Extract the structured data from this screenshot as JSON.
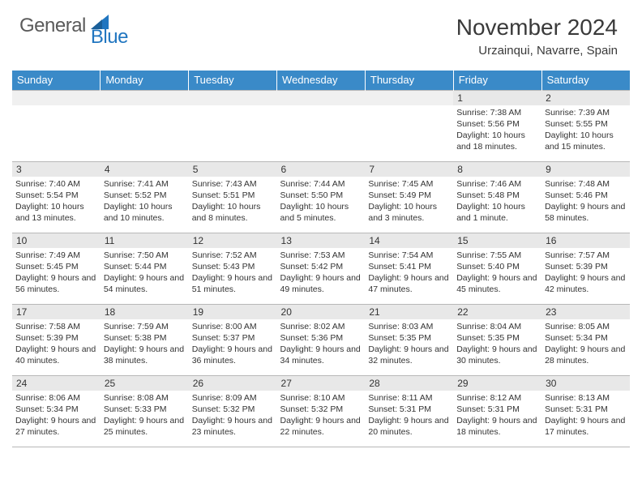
{
  "brand": {
    "text1": "General",
    "text2": "Blue"
  },
  "title": "November 2024",
  "location": "Urzainqui, Navarre, Spain",
  "colors": {
    "header_bg": "#3a8ac8",
    "header_text": "#ffffff",
    "daynum_bg": "#e8e8e8",
    "border": "#b8b8b8",
    "text": "#333333",
    "brand_blue": "#2176c0",
    "brand_gray": "#5a5a5a"
  },
  "weekdays": [
    "Sunday",
    "Monday",
    "Tuesday",
    "Wednesday",
    "Thursday",
    "Friday",
    "Saturday"
  ],
  "cells": [
    [
      {
        "day": null
      },
      {
        "day": null
      },
      {
        "day": null
      },
      {
        "day": null
      },
      {
        "day": null
      },
      {
        "day": "1",
        "sunrise": "Sunrise: 7:38 AM",
        "sunset": "Sunset: 5:56 PM",
        "daylight": "Daylight: 10 hours and 18 minutes."
      },
      {
        "day": "2",
        "sunrise": "Sunrise: 7:39 AM",
        "sunset": "Sunset: 5:55 PM",
        "daylight": "Daylight: 10 hours and 15 minutes."
      }
    ],
    [
      {
        "day": "3",
        "sunrise": "Sunrise: 7:40 AM",
        "sunset": "Sunset: 5:54 PM",
        "daylight": "Daylight: 10 hours and 13 minutes."
      },
      {
        "day": "4",
        "sunrise": "Sunrise: 7:41 AM",
        "sunset": "Sunset: 5:52 PM",
        "daylight": "Daylight: 10 hours and 10 minutes."
      },
      {
        "day": "5",
        "sunrise": "Sunrise: 7:43 AM",
        "sunset": "Sunset: 5:51 PM",
        "daylight": "Daylight: 10 hours and 8 minutes."
      },
      {
        "day": "6",
        "sunrise": "Sunrise: 7:44 AM",
        "sunset": "Sunset: 5:50 PM",
        "daylight": "Daylight: 10 hours and 5 minutes."
      },
      {
        "day": "7",
        "sunrise": "Sunrise: 7:45 AM",
        "sunset": "Sunset: 5:49 PM",
        "daylight": "Daylight: 10 hours and 3 minutes."
      },
      {
        "day": "8",
        "sunrise": "Sunrise: 7:46 AM",
        "sunset": "Sunset: 5:48 PM",
        "daylight": "Daylight: 10 hours and 1 minute."
      },
      {
        "day": "9",
        "sunrise": "Sunrise: 7:48 AM",
        "sunset": "Sunset: 5:46 PM",
        "daylight": "Daylight: 9 hours and 58 minutes."
      }
    ],
    [
      {
        "day": "10",
        "sunrise": "Sunrise: 7:49 AM",
        "sunset": "Sunset: 5:45 PM",
        "daylight": "Daylight: 9 hours and 56 minutes."
      },
      {
        "day": "11",
        "sunrise": "Sunrise: 7:50 AM",
        "sunset": "Sunset: 5:44 PM",
        "daylight": "Daylight: 9 hours and 54 minutes."
      },
      {
        "day": "12",
        "sunrise": "Sunrise: 7:52 AM",
        "sunset": "Sunset: 5:43 PM",
        "daylight": "Daylight: 9 hours and 51 minutes."
      },
      {
        "day": "13",
        "sunrise": "Sunrise: 7:53 AM",
        "sunset": "Sunset: 5:42 PM",
        "daylight": "Daylight: 9 hours and 49 minutes."
      },
      {
        "day": "14",
        "sunrise": "Sunrise: 7:54 AM",
        "sunset": "Sunset: 5:41 PM",
        "daylight": "Daylight: 9 hours and 47 minutes."
      },
      {
        "day": "15",
        "sunrise": "Sunrise: 7:55 AM",
        "sunset": "Sunset: 5:40 PM",
        "daylight": "Daylight: 9 hours and 45 minutes."
      },
      {
        "day": "16",
        "sunrise": "Sunrise: 7:57 AM",
        "sunset": "Sunset: 5:39 PM",
        "daylight": "Daylight: 9 hours and 42 minutes."
      }
    ],
    [
      {
        "day": "17",
        "sunrise": "Sunrise: 7:58 AM",
        "sunset": "Sunset: 5:39 PM",
        "daylight": "Daylight: 9 hours and 40 minutes."
      },
      {
        "day": "18",
        "sunrise": "Sunrise: 7:59 AM",
        "sunset": "Sunset: 5:38 PM",
        "daylight": "Daylight: 9 hours and 38 minutes."
      },
      {
        "day": "19",
        "sunrise": "Sunrise: 8:00 AM",
        "sunset": "Sunset: 5:37 PM",
        "daylight": "Daylight: 9 hours and 36 minutes."
      },
      {
        "day": "20",
        "sunrise": "Sunrise: 8:02 AM",
        "sunset": "Sunset: 5:36 PM",
        "daylight": "Daylight: 9 hours and 34 minutes."
      },
      {
        "day": "21",
        "sunrise": "Sunrise: 8:03 AM",
        "sunset": "Sunset: 5:35 PM",
        "daylight": "Daylight: 9 hours and 32 minutes."
      },
      {
        "day": "22",
        "sunrise": "Sunrise: 8:04 AM",
        "sunset": "Sunset: 5:35 PM",
        "daylight": "Daylight: 9 hours and 30 minutes."
      },
      {
        "day": "23",
        "sunrise": "Sunrise: 8:05 AM",
        "sunset": "Sunset: 5:34 PM",
        "daylight": "Daylight: 9 hours and 28 minutes."
      }
    ],
    [
      {
        "day": "24",
        "sunrise": "Sunrise: 8:06 AM",
        "sunset": "Sunset: 5:34 PM",
        "daylight": "Daylight: 9 hours and 27 minutes."
      },
      {
        "day": "25",
        "sunrise": "Sunrise: 8:08 AM",
        "sunset": "Sunset: 5:33 PM",
        "daylight": "Daylight: 9 hours and 25 minutes."
      },
      {
        "day": "26",
        "sunrise": "Sunrise: 8:09 AM",
        "sunset": "Sunset: 5:32 PM",
        "daylight": "Daylight: 9 hours and 23 minutes."
      },
      {
        "day": "27",
        "sunrise": "Sunrise: 8:10 AM",
        "sunset": "Sunset: 5:32 PM",
        "daylight": "Daylight: 9 hours and 22 minutes."
      },
      {
        "day": "28",
        "sunrise": "Sunrise: 8:11 AM",
        "sunset": "Sunset: 5:31 PM",
        "daylight": "Daylight: 9 hours and 20 minutes."
      },
      {
        "day": "29",
        "sunrise": "Sunrise: 8:12 AM",
        "sunset": "Sunset: 5:31 PM",
        "daylight": "Daylight: 9 hours and 18 minutes."
      },
      {
        "day": "30",
        "sunrise": "Sunrise: 8:13 AM",
        "sunset": "Sunset: 5:31 PM",
        "daylight": "Daylight: 9 hours and 17 minutes."
      }
    ]
  ]
}
